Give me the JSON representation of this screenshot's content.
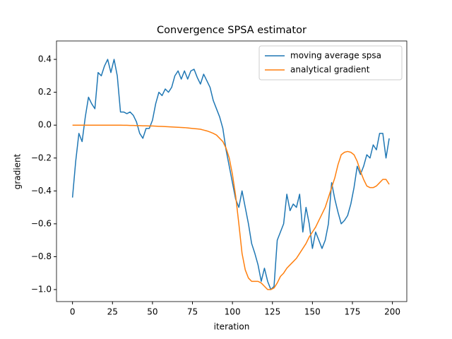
{
  "chart_data": {
    "type": "line",
    "title": "Convergence SPSA estimator",
    "x_label": "iteration",
    "y_label": "gradient",
    "x": [
      0,
      2,
      4,
      6,
      8,
      10,
      12,
      14,
      16,
      18,
      20,
      22,
      24,
      26,
      28,
      30,
      32,
      34,
      36,
      38,
      40,
      42,
      44,
      46,
      48,
      50,
      52,
      54,
      56,
      58,
      60,
      62,
      64,
      66,
      68,
      70,
      72,
      74,
      76,
      78,
      80,
      82,
      84,
      86,
      88,
      90,
      92,
      94,
      96,
      98,
      100,
      102,
      104,
      106,
      108,
      110,
      112,
      114,
      116,
      118,
      120,
      122,
      124,
      126,
      128,
      130,
      132,
      134,
      136,
      138,
      140,
      142,
      144,
      146,
      148,
      150,
      152,
      154,
      156,
      158,
      160,
      162,
      164,
      166,
      168,
      170,
      172,
      174,
      176,
      178,
      180,
      182,
      184,
      186,
      188,
      190,
      192,
      194,
      196,
      198
    ],
    "series": [
      {
        "name": "moving average spsa",
        "color": "#1f77b4",
        "values": [
          -0.44,
          -0.22,
          -0.05,
          -0.1,
          0.05,
          0.17,
          0.13,
          0.1,
          0.32,
          0.3,
          0.36,
          0.4,
          0.32,
          0.4,
          0.3,
          0.08,
          0.08,
          0.07,
          0.08,
          0.06,
          0.02,
          -0.05,
          -0.08,
          -0.02,
          -0.02,
          0.03,
          0.13,
          0.2,
          0.18,
          0.22,
          0.2,
          0.23,
          0.3,
          0.33,
          0.28,
          0.33,
          0.28,
          0.33,
          0.34,
          0.29,
          0.25,
          0.31,
          0.27,
          0.23,
          0.15,
          0.1,
          0.05,
          -0.02,
          -0.15,
          -0.25,
          -0.35,
          -0.45,
          -0.5,
          -0.4,
          -0.5,
          -0.6,
          -0.72,
          -0.78,
          -0.85,
          -0.95,
          -0.87,
          -0.95,
          -1.0,
          -0.98,
          -0.7,
          -0.65,
          -0.6,
          -0.42,
          -0.52,
          -0.48,
          -0.5,
          -0.42,
          -0.65,
          -0.5,
          -0.6,
          -0.75,
          -0.65,
          -0.7,
          -0.75,
          -0.7,
          -0.6,
          -0.35,
          -0.45,
          -0.53,
          -0.6,
          -0.58,
          -0.55,
          -0.48,
          -0.38,
          -0.25,
          -0.3,
          -0.25,
          -0.18,
          -0.2,
          -0.12,
          -0.15,
          -0.05,
          -0.05,
          -0.2,
          -0.08
        ]
      },
      {
        "name": "analytical gradient",
        "color": "#ff7f0e",
        "values": [
          0,
          0,
          0,
          0,
          0,
          0,
          0,
          0,
          0,
          0,
          0,
          0,
          0,
          0,
          0,
          0,
          -0.001,
          -0.001,
          -0.002,
          -0.002,
          -0.003,
          -0.003,
          -0.004,
          -0.004,
          -0.005,
          -0.005,
          -0.006,
          -0.007,
          -0.008,
          -0.009,
          -0.01,
          -0.011,
          -0.012,
          -0.013,
          -0.014,
          -0.015,
          -0.017,
          -0.019,
          -0.021,
          -0.023,
          -0.025,
          -0.03,
          -0.035,
          -0.042,
          -0.05,
          -0.06,
          -0.08,
          -0.1,
          -0.14,
          -0.2,
          -0.3,
          -0.43,
          -0.6,
          -0.78,
          -0.88,
          -0.93,
          -0.95,
          -0.95,
          -0.95,
          -0.96,
          -0.98,
          -1.0,
          -1.0,
          -0.99,
          -0.96,
          -0.92,
          -0.9,
          -0.87,
          -0.85,
          -0.83,
          -0.81,
          -0.78,
          -0.75,
          -0.72,
          -0.68,
          -0.65,
          -0.62,
          -0.58,
          -0.54,
          -0.5,
          -0.44,
          -0.38,
          -0.32,
          -0.24,
          -0.18,
          -0.165,
          -0.16,
          -0.165,
          -0.18,
          -0.22,
          -0.28,
          -0.33,
          -0.37,
          -0.38,
          -0.38,
          -0.37,
          -0.35,
          -0.33,
          -0.33,
          -0.36
        ]
      }
    ],
    "xlim": [
      -10,
      209
    ],
    "ylim": [
      -1.073,
      0.512
    ],
    "xticks": [
      0,
      25,
      50,
      75,
      100,
      125,
      150,
      175,
      200
    ],
    "yticks": [
      {
        "value": -1.0,
        "label": "−1.0"
      },
      {
        "value": -0.8,
        "label": "−0.8"
      },
      {
        "value": -0.6,
        "label": "−0.6"
      },
      {
        "value": -0.4,
        "label": "−0.4"
      },
      {
        "value": -0.2,
        "label": "−0.2"
      },
      {
        "value": 0.0,
        "label": "0.0"
      },
      0.2,
      0.4
    ],
    "legend": "upper right",
    "grid": false
  }
}
